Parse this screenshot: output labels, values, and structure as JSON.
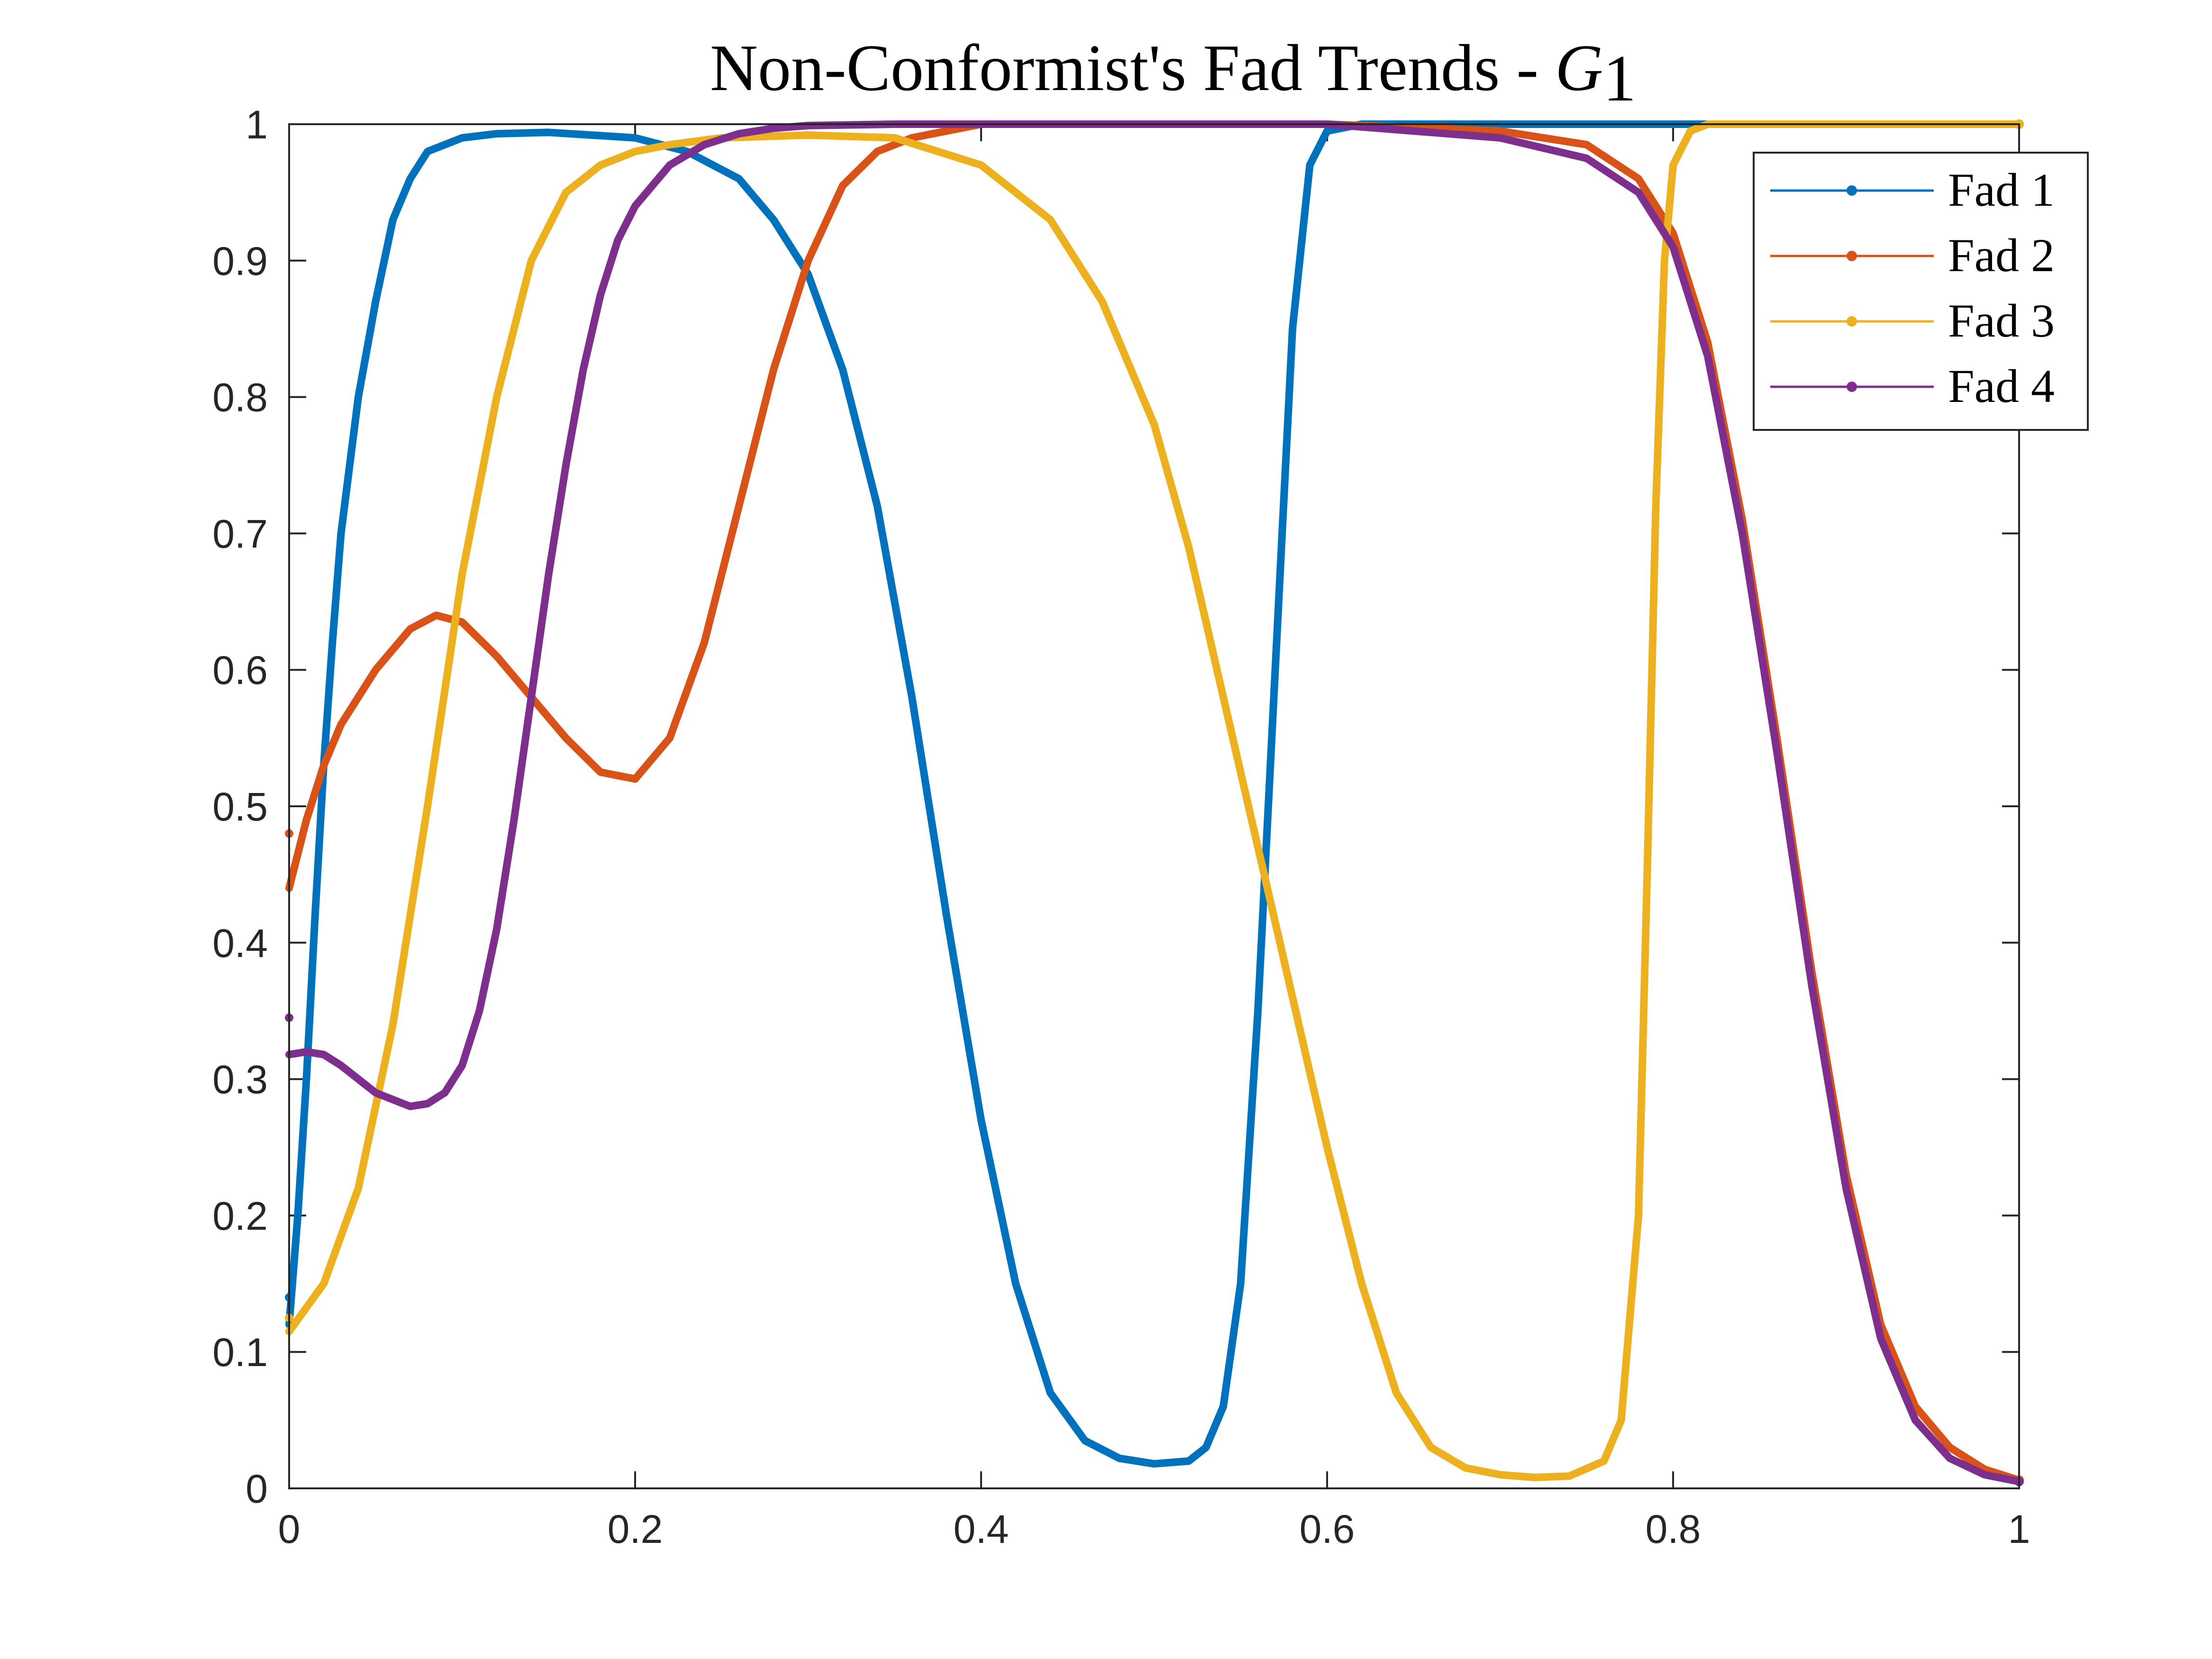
{
  "chart_data": {
    "type": "line",
    "title": "Non-Conformist's Fad Trends - ",
    "title_symbol": "G",
    "title_subscript": "1",
    "xlabel": "",
    "ylabel": "",
    "xlim": [
      0,
      1
    ],
    "ylim": [
      0,
      1
    ],
    "x_ticks": [
      "0",
      "0.2",
      "0.4",
      "0.6",
      "0.8",
      "1"
    ],
    "y_ticks": [
      "0",
      "0.1",
      "0.2",
      "0.3",
      "0.4",
      "0.5",
      "0.6",
      "0.7",
      "0.8",
      "0.9",
      "1"
    ],
    "grid": false,
    "legend_position": "top-right",
    "colors": {
      "Fad 1": "#0072BD",
      "Fad 2": "#D95319",
      "Fad 3": "#EDB120",
      "Fad 4": "#7E2F8E"
    },
    "series": [
      {
        "name": "Fad 1",
        "start_marker": 0.14,
        "x": [
          0,
          0.005,
          0.01,
          0.015,
          0.02,
          0.025,
          0.03,
          0.04,
          0.05,
          0.06,
          0.07,
          0.08,
          0.1,
          0.12,
          0.15,
          0.2,
          0.23,
          0.26,
          0.28,
          0.3,
          0.32,
          0.34,
          0.36,
          0.38,
          0.4,
          0.42,
          0.44,
          0.46,
          0.48,
          0.5,
          0.52,
          0.53,
          0.54,
          0.55,
          0.56,
          0.57,
          0.58,
          0.59,
          0.6,
          0.62,
          0.7,
          0.8,
          0.9,
          1.0
        ],
        "y": [
          0.12,
          0.2,
          0.3,
          0.42,
          0.53,
          0.62,
          0.7,
          0.8,
          0.87,
          0.93,
          0.96,
          0.98,
          0.99,
          0.993,
          0.994,
          0.99,
          0.98,
          0.96,
          0.93,
          0.89,
          0.82,
          0.72,
          0.58,
          0.42,
          0.27,
          0.15,
          0.07,
          0.035,
          0.022,
          0.018,
          0.02,
          0.03,
          0.06,
          0.15,
          0.35,
          0.6,
          0.85,
          0.97,
          0.995,
          1.0,
          1.0,
          1.0,
          1.0,
          1.0
        ]
      },
      {
        "name": "Fad 2",
        "start_marker": 0.48,
        "x": [
          0,
          0.01,
          0.02,
          0.03,
          0.05,
          0.07,
          0.085,
          0.1,
          0.12,
          0.14,
          0.16,
          0.18,
          0.2,
          0.22,
          0.24,
          0.26,
          0.28,
          0.3,
          0.32,
          0.34,
          0.36,
          0.38,
          0.4,
          0.5,
          0.6,
          0.7,
          0.75,
          0.78,
          0.8,
          0.82,
          0.84,
          0.86,
          0.88,
          0.9,
          0.92,
          0.94,
          0.96,
          0.98,
          1.0
        ],
        "y": [
          0.44,
          0.49,
          0.53,
          0.56,
          0.6,
          0.63,
          0.64,
          0.635,
          0.61,
          0.58,
          0.55,
          0.525,
          0.52,
          0.55,
          0.62,
          0.72,
          0.82,
          0.9,
          0.955,
          0.98,
          0.99,
          0.995,
          1.0,
          1.0,
          1.0,
          0.995,
          0.985,
          0.96,
          0.92,
          0.84,
          0.71,
          0.55,
          0.38,
          0.23,
          0.12,
          0.06,
          0.03,
          0.014,
          0.006
        ]
      },
      {
        "name": "Fad 3",
        "start_marker": 0.125,
        "x": [
          0,
          0.02,
          0.04,
          0.06,
          0.08,
          0.1,
          0.12,
          0.14,
          0.16,
          0.18,
          0.2,
          0.22,
          0.25,
          0.3,
          0.35,
          0.4,
          0.44,
          0.47,
          0.5,
          0.52,
          0.54,
          0.56,
          0.58,
          0.6,
          0.62,
          0.64,
          0.66,
          0.68,
          0.7,
          0.72,
          0.74,
          0.76,
          0.77,
          0.78,
          0.785,
          0.79,
          0.795,
          0.8,
          0.81,
          0.82,
          0.9,
          1.0
        ],
        "y": [
          0.115,
          0.15,
          0.22,
          0.34,
          0.5,
          0.67,
          0.8,
          0.9,
          0.95,
          0.97,
          0.98,
          0.985,
          0.99,
          0.992,
          0.99,
          0.97,
          0.93,
          0.87,
          0.78,
          0.69,
          0.58,
          0.47,
          0.36,
          0.25,
          0.15,
          0.07,
          0.03,
          0.015,
          0.01,
          0.008,
          0.009,
          0.02,
          0.05,
          0.2,
          0.45,
          0.72,
          0.9,
          0.97,
          0.995,
          1.0,
          1.0,
          1.0
        ]
      },
      {
        "name": "Fad 4",
        "start_marker": 0.345,
        "x": [
          0,
          0.01,
          0.02,
          0.03,
          0.05,
          0.07,
          0.08,
          0.09,
          0.1,
          0.11,
          0.12,
          0.13,
          0.14,
          0.15,
          0.16,
          0.17,
          0.18,
          0.19,
          0.2,
          0.22,
          0.24,
          0.26,
          0.28,
          0.3,
          0.35,
          0.4,
          0.5,
          0.6,
          0.7,
          0.75,
          0.78,
          0.8,
          0.82,
          0.84,
          0.86,
          0.88,
          0.9,
          0.92,
          0.94,
          0.96,
          0.98,
          1.0
        ],
        "y": [
          0.318,
          0.32,
          0.318,
          0.31,
          0.29,
          0.28,
          0.282,
          0.29,
          0.31,
          0.35,
          0.41,
          0.49,
          0.58,
          0.67,
          0.75,
          0.82,
          0.875,
          0.915,
          0.94,
          0.97,
          0.985,
          0.993,
          0.997,
          0.999,
          1.0,
          1.0,
          1.0,
          1.0,
          0.99,
          0.975,
          0.95,
          0.91,
          0.83,
          0.7,
          0.54,
          0.37,
          0.22,
          0.11,
          0.05,
          0.022,
          0.01,
          0.005
        ]
      }
    ]
  }
}
